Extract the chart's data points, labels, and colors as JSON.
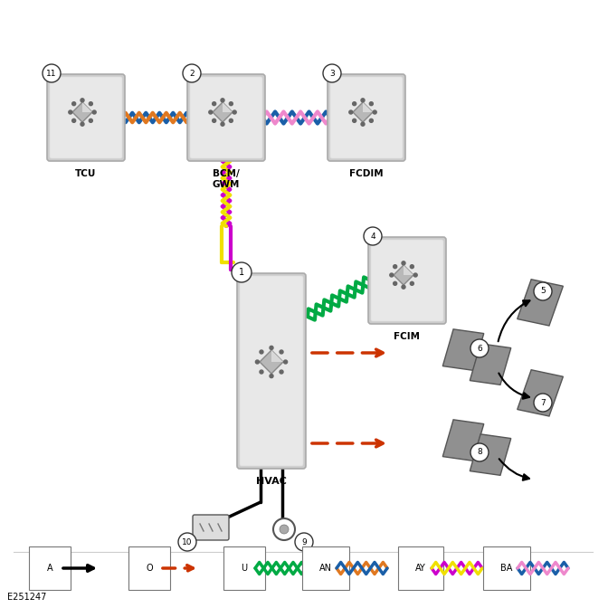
{
  "figsize": [
    6.72,
    6.72
  ],
  "dpi": 100,
  "background": "#ffffff",
  "wire_colors": {
    "TCU_BCM_top": "#1a5fa8",
    "TCU_BCM_bot": "#e07820",
    "BCM_FCDIM_top": "#1a5fa8",
    "BCM_FCDIM_bot": "#ee88cc",
    "BCM_HVAC_top": "#cc00cc",
    "BCM_HVAC_bot": "#f0e000",
    "HVAC_FCIM_top": "#00aa44",
    "HVAC_FCIM_bot": "#00aa44",
    "HVAC_out1": "#cc3300",
    "HVAC_out2": "#cc3300"
  },
  "ref_label": "E251247",
  "legend_items": [
    {
      "label": "A",
      "type": "solid_arrow",
      "c1": "#000000",
      "c2": "#000000"
    },
    {
      "label": "O",
      "type": "dash_arrow",
      "c1": "#cc3300",
      "c2": "#cc3300"
    },
    {
      "label": "U",
      "type": "twist",
      "c1": "#00aa44",
      "c2": "#00aa44"
    },
    {
      "label": "AN",
      "type": "twist",
      "c1": "#e07820",
      "c2": "#1a5fa8"
    },
    {
      "label": "AY",
      "type": "twist",
      "c1": "#cc00cc",
      "c2": "#f0e000"
    },
    {
      "label": "BA",
      "type": "twist",
      "c1": "#1a5fa8",
      "c2": "#ee88cc"
    }
  ]
}
